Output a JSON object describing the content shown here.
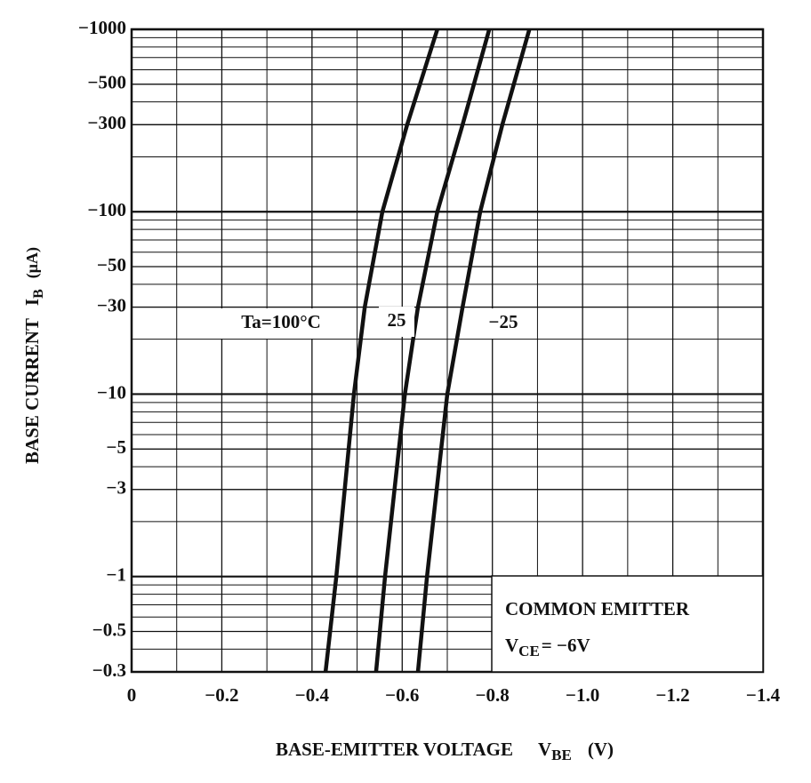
{
  "chart_data": {
    "type": "line",
    "ylabel": "BASE CURRENT",
    "ylabel_symbol": "I",
    "ylabel_subscript": "B",
    "ylabel_unit": "(μA)",
    "xlabel": "BASE-EMITTER VOLTAGE",
    "xlabel_symbol": "V",
    "xlabel_subscript": "BE",
    "xlabel_unit": "(V)",
    "annotation": {
      "line1": "COMMON EMITTER",
      "symbol": "V",
      "subscript": "CE",
      "rest": "= −6V"
    },
    "log_scale": true,
    "grid": true,
    "color": "#111111",
    "xlim": [
      0,
      -1.4
    ],
    "xticks": [
      0,
      {
        "value": -0.2,
        "label": "−0.2"
      },
      {
        "value": -0.4,
        "label": "−0.4"
      },
      {
        "value": -0.6,
        "label": "−0.6"
      },
      {
        "value": -0.8,
        "label": "−0.8"
      },
      {
        "value": -1.0,
        "label": "−1.0"
      },
      {
        "value": -1.2,
        "label": "−1.2"
      },
      {
        "value": -1.4,
        "label": "−1.4"
      }
    ],
    "ylim": [
      -0.3,
      -1000
    ],
    "yticks": [
      {
        "value": -1000,
        "label": "−1000"
      },
      {
        "value": -500,
        "label": "−500"
      },
      {
        "value": -300,
        "label": "−300"
      },
      {
        "value": -100,
        "label": "−100"
      },
      {
        "value": -50,
        "label": "−50"
      },
      {
        "value": -30,
        "label": "−30"
      },
      {
        "value": -10,
        "label": "−10"
      },
      {
        "value": -5,
        "label": "−5"
      },
      {
        "value": -3,
        "label": "−3"
      },
      {
        "value": -1,
        "label": "−1"
      },
      {
        "value": -0.5,
        "label": "−0.5"
      },
      {
        "value": -0.3,
        "label": "−0.3"
      }
    ],
    "series": [
      {
        "name": "Ta=100°C",
        "x": [
          -0.43,
          -0.454,
          -0.493,
          -0.517,
          -0.556,
          -0.611,
          -0.678
        ],
        "values": [
          -0.3,
          -1,
          -10,
          -30,
          -100,
          -300,
          -1000
        ]
      },
      {
        "name": "25",
        "x": [
          -0.542,
          -0.562,
          -0.606,
          -0.635,
          -0.678,
          -0.734,
          -0.793
        ],
        "values": [
          -0.3,
          -1,
          -10,
          -30,
          -100,
          -300,
          -1000
        ]
      },
      {
        "name": "−25",
        "x": [
          -0.635,
          -0.655,
          -0.7,
          -0.734,
          -0.773,
          -0.822,
          -0.882
        ],
        "values": [
          -0.3,
          -1,
          -10,
          -30,
          -100,
          -300,
          -1000
        ]
      }
    ]
  }
}
